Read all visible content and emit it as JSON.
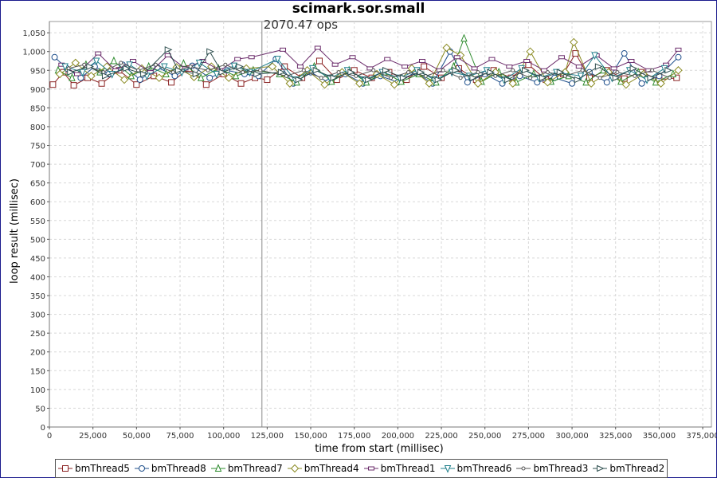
{
  "chart_data": {
    "type": "scatter",
    "title": "scimark.sor.small",
    "xlabel": "time from start (millisec)",
    "ylabel": "loop result (millisec)",
    "xlim": [
      0,
      380000
    ],
    "ylim": [
      0,
      1080
    ],
    "x_ticks": [
      "0",
      "25,000",
      "50,000",
      "75,000",
      "100,000",
      "125,000",
      "150,000",
      "175,000",
      "200,000",
      "225,000",
      "250,000",
      "275,000",
      "300,000",
      "325,000",
      "350,000",
      "375,000"
    ],
    "y_ticks": [
      "0",
      "50",
      "100",
      "150",
      "200",
      "250",
      "300",
      "350",
      "400",
      "450",
      "500",
      "550",
      "600",
      "650",
      "700",
      "750",
      "800",
      "850",
      "900",
      "950",
      "1,000",
      "1,050"
    ],
    "grid": true,
    "legend_position": "bottom",
    "marker": {
      "x": 122000,
      "label": "2070.47 ops"
    },
    "series": [
      {
        "name": "bmThread5",
        "color": "#8b2323",
        "shape": "square",
        "points": [
          [
            2000,
            912
          ],
          [
            8000,
            945
          ],
          [
            14000,
            910
          ],
          [
            22000,
            930
          ],
          [
            30000,
            915
          ],
          [
            40000,
            950
          ],
          [
            50000,
            912
          ],
          [
            60000,
            935
          ],
          [
            70000,
            918
          ],
          [
            80000,
            955
          ],
          [
            90000,
            912
          ],
          [
            100000,
            940
          ],
          [
            110000,
            915
          ],
          [
            118000,
            930
          ],
          [
            125000,
            925
          ],
          [
            135000,
            960
          ],
          [
            145000,
            930
          ],
          [
            155000,
            975
          ],
          [
            165000,
            925
          ],
          [
            175000,
            950
          ],
          [
            185000,
            930
          ],
          [
            195000,
            945
          ],
          [
            205000,
            925
          ],
          [
            215000,
            960
          ],
          [
            225000,
            930
          ],
          [
            235000,
            955
          ],
          [
            245000,
            925
          ],
          [
            255000,
            950
          ],
          [
            265000,
            930
          ],
          [
            275000,
            965
          ],
          [
            285000,
            925
          ],
          [
            295000,
            940
          ],
          [
            302000,
            995
          ],
          [
            310000,
            930
          ],
          [
            320000,
            950
          ],
          [
            330000,
            928
          ],
          [
            340000,
            945
          ],
          [
            350000,
            925
          ],
          [
            360000,
            930
          ]
        ]
      },
      {
        "name": "bmThread8",
        "color": "#1f4f8b",
        "shape": "circle",
        "points": [
          [
            3000,
            985
          ],
          [
            10000,
            955
          ],
          [
            18000,
            930
          ],
          [
            26000,
            960
          ],
          [
            34000,
            940
          ],
          [
            42000,
            965
          ],
          [
            52000,
            925
          ],
          [
            62000,
            958
          ],
          [
            72000,
            935
          ],
          [
            82000,
            962
          ],
          [
            92000,
            930
          ],
          [
            102000,
            950
          ],
          [
            112000,
            940
          ],
          [
            120000,
            935
          ],
          [
            130000,
            980
          ],
          [
            140000,
            915
          ],
          [
            150000,
            945
          ],
          [
            160000,
            918
          ],
          [
            170000,
            940
          ],
          [
            180000,
            915
          ],
          [
            190000,
            935
          ],
          [
            200000,
            918
          ],
          [
            210000,
            945
          ],
          [
            220000,
            915
          ],
          [
            230000,
            1000
          ],
          [
            240000,
            918
          ],
          [
            250000,
            940
          ],
          [
            260000,
            915
          ],
          [
            270000,
            935
          ],
          [
            280000,
            918
          ],
          [
            290000,
            930
          ],
          [
            300000,
            915
          ],
          [
            310000,
            945
          ],
          [
            320000,
            918
          ],
          [
            330000,
            995
          ],
          [
            340000,
            915
          ],
          [
            350000,
            935
          ],
          [
            361000,
            985
          ]
        ]
      },
      {
        "name": "bmThread7",
        "color": "#2e8b2e",
        "shape": "triangle-up",
        "points": [
          [
            5000,
            950
          ],
          [
            13000,
            930
          ],
          [
            21000,
            965
          ],
          [
            29000,
            945
          ],
          [
            37000,
            975
          ],
          [
            47000,
            935
          ],
          [
            57000,
            960
          ],
          [
            67000,
            940
          ],
          [
            77000,
            968
          ],
          [
            87000,
            930
          ],
          [
            97000,
            955
          ],
          [
            107000,
            935
          ],
          [
            117000,
            950
          ],
          [
            132000,
            940
          ],
          [
            142000,
            918
          ],
          [
            152000,
            960
          ],
          [
            162000,
            920
          ],
          [
            172000,
            950
          ],
          [
            182000,
            918
          ],
          [
            192000,
            945
          ],
          [
            202000,
            920
          ],
          [
            212000,
            940
          ],
          [
            222000,
            918
          ],
          [
            232000,
            960
          ],
          [
            238000,
            1035
          ],
          [
            248000,
            920
          ],
          [
            258000,
            945
          ],
          [
            268000,
            918
          ],
          [
            278000,
            940
          ],
          [
            288000,
            920
          ],
          [
            298000,
            935
          ],
          [
            308000,
            918
          ],
          [
            318000,
            950
          ],
          [
            328000,
            920
          ],
          [
            338000,
            945
          ],
          [
            348000,
            918
          ],
          [
            358000,
            940
          ]
        ]
      },
      {
        "name": "bmThread4",
        "color": "#8b8b23",
        "shape": "diamond",
        "points": [
          [
            6000,
            940
          ],
          [
            15000,
            970
          ],
          [
            24000,
            935
          ],
          [
            33000,
            960
          ],
          [
            43000,
            925
          ],
          [
            53000,
            955
          ],
          [
            63000,
            930
          ],
          [
            73000,
            958
          ],
          [
            83000,
            932
          ],
          [
            93000,
            960
          ],
          [
            103000,
            930
          ],
          [
            113000,
            955
          ],
          [
            128000,
            960
          ],
          [
            138000,
            915
          ],
          [
            148000,
            950
          ],
          [
            158000,
            912
          ],
          [
            168000,
            945
          ],
          [
            178000,
            915
          ],
          [
            188000,
            940
          ],
          [
            198000,
            912
          ],
          [
            208000,
            955
          ],
          [
            218000,
            915
          ],
          [
            228000,
            1010
          ],
          [
            236000,
            990
          ],
          [
            246000,
            915
          ],
          [
            256000,
            945
          ],
          [
            266000,
            915
          ],
          [
            276000,
            1000
          ],
          [
            286000,
            918
          ],
          [
            296000,
            945
          ],
          [
            301000,
            1025
          ],
          [
            311000,
            915
          ],
          [
            321000,
            945
          ],
          [
            331000,
            912
          ],
          [
            341000,
            940
          ],
          [
            351000,
            915
          ],
          [
            361000,
            950
          ]
        ]
      },
      {
        "name": "bmThread1",
        "color": "#6b2c6b",
        "shape": "hbar",
        "points": [
          [
            7000,
            965
          ],
          [
            16000,
            940
          ],
          [
            28000,
            995
          ],
          [
            38000,
            950
          ],
          [
            48000,
            975
          ],
          [
            58000,
            945
          ],
          [
            68000,
            990
          ],
          [
            78000,
            955
          ],
          [
            88000,
            975
          ],
          [
            98000,
            950
          ],
          [
            108000,
            980
          ],
          [
            116000,
            985
          ],
          [
            134000,
            1005
          ],
          [
            144000,
            960
          ],
          [
            154000,
            1010
          ],
          [
            164000,
            965
          ],
          [
            174000,
            985
          ],
          [
            184000,
            955
          ],
          [
            194000,
            980
          ],
          [
            204000,
            960
          ],
          [
            214000,
            975
          ],
          [
            224000,
            950
          ],
          [
            234000,
            985
          ],
          [
            244000,
            955
          ],
          [
            254000,
            980
          ],
          [
            264000,
            960
          ],
          [
            274000,
            975
          ],
          [
            284000,
            950
          ],
          [
            294000,
            985
          ],
          [
            304000,
            960
          ],
          [
            314000,
            990
          ],
          [
            324000,
            955
          ],
          [
            334000,
            975
          ],
          [
            344000,
            950
          ],
          [
            354000,
            965
          ],
          [
            361000,
            1005
          ]
        ]
      },
      {
        "name": "bmThread6",
        "color": "#1f7f8b",
        "shape": "triangle-down",
        "points": [
          [
            9000,
            960
          ],
          [
            19000,
            945
          ],
          [
            27000,
            975
          ],
          [
            36000,
            940
          ],
          [
            46000,
            965
          ],
          [
            56000,
            935
          ],
          [
            66000,
            960
          ],
          [
            76000,
            945
          ],
          [
            86000,
            970
          ],
          [
            96000,
            940
          ],
          [
            106000,
            962
          ],
          [
            115000,
            945
          ],
          [
            131000,
            980
          ],
          [
            141000,
            925
          ],
          [
            151000,
            955
          ],
          [
            161000,
            930
          ],
          [
            171000,
            950
          ],
          [
            181000,
            925
          ],
          [
            191000,
            945
          ],
          [
            201000,
            930
          ],
          [
            211000,
            950
          ],
          [
            221000,
            925
          ],
          [
            231000,
            945
          ],
          [
            241000,
            935
          ],
          [
            251000,
            950
          ],
          [
            261000,
            925
          ],
          [
            271000,
            955
          ],
          [
            281000,
            930
          ],
          [
            291000,
            945
          ],
          [
            305000,
            935
          ],
          [
            313000,
            990
          ],
          [
            323000,
            930
          ],
          [
            333000,
            950
          ],
          [
            343000,
            925
          ],
          [
            353000,
            955
          ]
        ]
      },
      {
        "name": "bmThread3",
        "color": "#555555",
        "shape": "dot",
        "points": [
          [
            11000,
            955
          ],
          [
            20000,
            965
          ],
          [
            31000,
            945
          ],
          [
            41000,
            970
          ],
          [
            51000,
            950
          ],
          [
            61000,
            965
          ],
          [
            71000,
            945
          ],
          [
            81000,
            960
          ],
          [
            91000,
            950
          ],
          [
            101000,
            965
          ],
          [
            111000,
            945
          ],
          [
            121000,
            950
          ],
          [
            136000,
            935
          ],
          [
            146000,
            950
          ],
          [
            156000,
            930
          ],
          [
            166000,
            945
          ],
          [
            176000,
            935
          ],
          [
            186000,
            950
          ],
          [
            196000,
            930
          ],
          [
            206000,
            945
          ],
          [
            216000,
            935
          ],
          [
            226000,
            950
          ],
          [
            236000,
            930
          ],
          [
            246000,
            945
          ],
          [
            256000,
            935
          ],
          [
            266000,
            950
          ],
          [
            276000,
            930
          ],
          [
            286000,
            945
          ],
          [
            296000,
            935
          ],
          [
            306000,
            950
          ],
          [
            316000,
            930
          ],
          [
            326000,
            945
          ],
          [
            336000,
            935
          ],
          [
            346000,
            950
          ],
          [
            356000,
            930
          ]
        ]
      },
      {
        "name": "bmThread2",
        "color": "#2f4f4f",
        "shape": "triangle-right",
        "points": [
          [
            12000,
            945
          ],
          [
            23000,
            960
          ],
          [
            32000,
            935
          ],
          [
            44000,
            955
          ],
          [
            54000,
            940
          ],
          [
            68000,
            1005
          ],
          [
            74000,
            950
          ],
          [
            84000,
            940
          ],
          [
            92000,
            1000
          ],
          [
            99000,
            945
          ],
          [
            109000,
            960
          ],
          [
            119000,
            940
          ],
          [
            133000,
            945
          ],
          [
            143000,
            925
          ],
          [
            153000,
            950
          ],
          [
            163000,
            930
          ],
          [
            173000,
            945
          ],
          [
            183000,
            925
          ],
          [
            193000,
            950
          ],
          [
            203000,
            930
          ],
          [
            213000,
            945
          ],
          [
            223000,
            925
          ],
          [
            233000,
            950
          ],
          [
            243000,
            930
          ],
          [
            253000,
            945
          ],
          [
            263000,
            925
          ],
          [
            273000,
            950
          ],
          [
            283000,
            930
          ],
          [
            293000,
            945
          ],
          [
            303000,
            925
          ],
          [
            315000,
            960
          ],
          [
            325000,
            930
          ],
          [
            335000,
            955
          ],
          [
            345000,
            930
          ],
          [
            355000,
            950
          ]
        ]
      }
    ]
  }
}
